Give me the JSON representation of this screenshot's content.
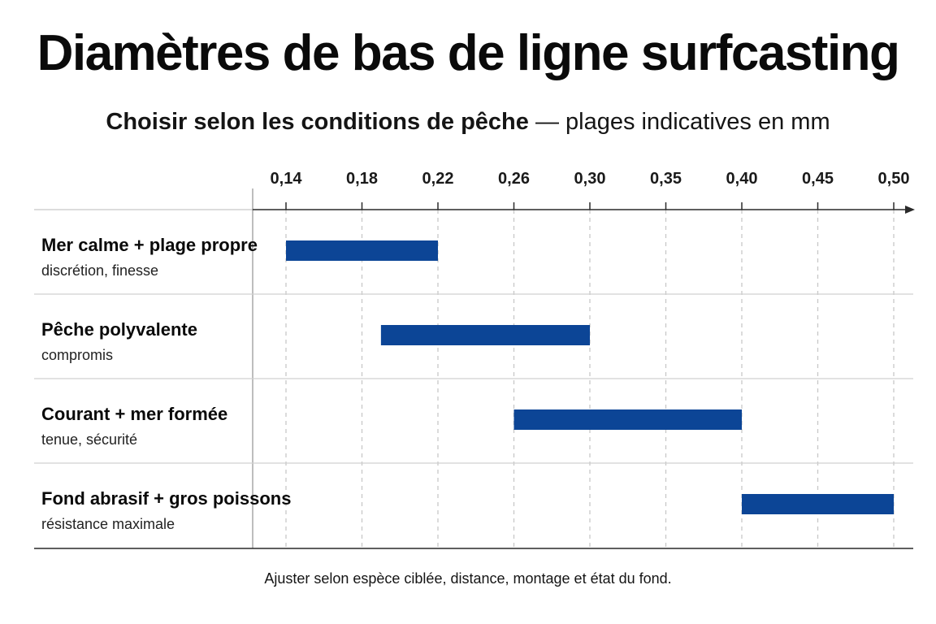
{
  "header": {
    "title": "Diamètres de bas de ligne surfcasting",
    "subtitle_strong": "Choisir selon les conditions de pêche",
    "subtitle_rest": " — plages indicatives en mm"
  },
  "footnote": "Ajuster selon espèce ciblée, distance, montage et état du fond.",
  "colors": {
    "bar": "#0c4596",
    "grid": "#c8c8c8",
    "axis": "#2a2a2a",
    "separator": "#d0d0d0"
  },
  "chart_data": {
    "type": "bar",
    "orientation": "horizontal-range",
    "title": "Diamètres de bas de ligne surfcasting",
    "subtitle": "Choisir selon les conditions de pêche — plages indicatives en mm",
    "x_ticks": [
      "0,14",
      "0,18",
      "0,22",
      "0,26",
      "0,30",
      "0,35",
      "0,40",
      "0,45",
      "0,50"
    ],
    "x_tick_values": [
      0.14,
      0.18,
      0.22,
      0.26,
      0.3,
      0.35,
      0.4,
      0.45,
      0.5
    ],
    "grid": true,
    "categories": [
      {
        "label": "Mer calme + plage propre",
        "sublabel": "discrétion, finesse",
        "min": 0.14,
        "max": 0.22
      },
      {
        "label": "Pêche polyvalente",
        "sublabel": "compromis",
        "min": 0.19,
        "max": 0.3
      },
      {
        "label": "Courant + mer formée",
        "sublabel": "tenue, sécurité",
        "min": 0.26,
        "max": 0.4
      },
      {
        "label": "Fond abrasif + gros poissons",
        "sublabel": "résistance maximale",
        "min": 0.4,
        "max": 0.5
      }
    ]
  }
}
